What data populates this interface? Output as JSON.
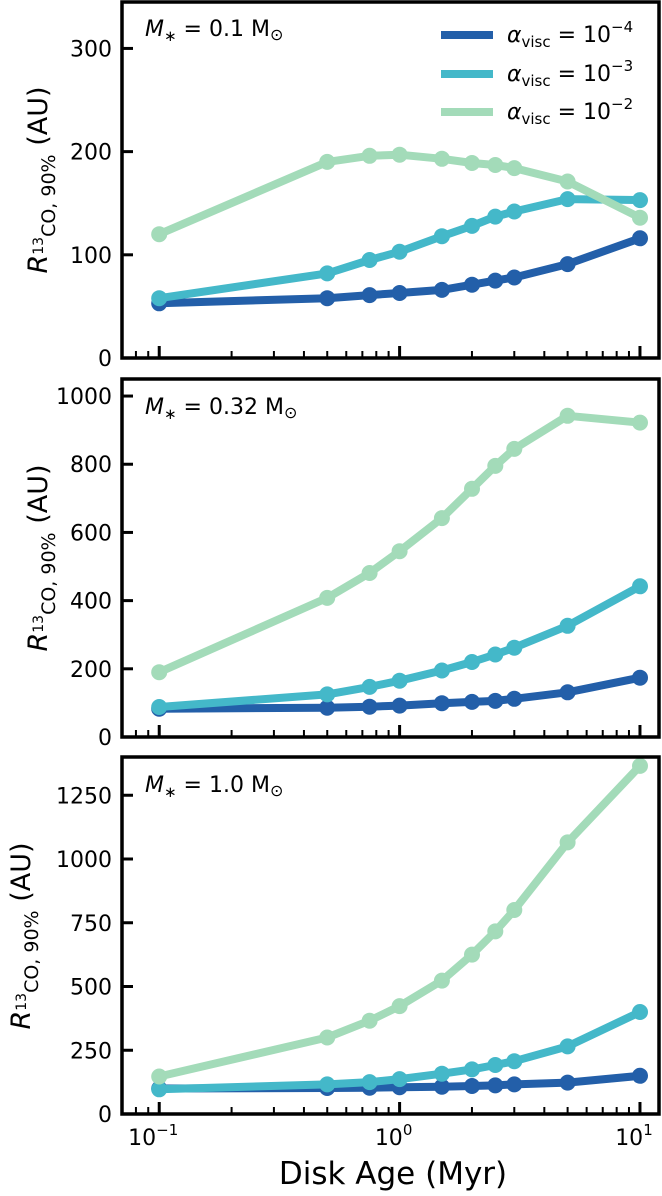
{
  "figure": {
    "xlabel": "Disk Age (Myr)",
    "ylabel_main": "R",
    "ylabel_sub": "13",
    "ylabel_sub2": "CO, 90%",
    "ylabel_unit": "(AU)",
    "x_tick_labels": [
      "10",
      "10",
      "10"
    ],
    "x_tick_exponents": [
      "−1",
      "0",
      "1"
    ]
  },
  "legend": {
    "placement": "top-right",
    "entries": [
      {
        "alpha": "α",
        "sub": "visc",
        "eq": " = 10",
        "exp": "−4",
        "color": "#235fa9"
      },
      {
        "alpha": "α",
        "sub": "visc",
        "eq": " = 10",
        "exp": "−3",
        "color": "#44b8c9"
      },
      {
        "alpha": "α",
        "sub": "visc",
        "eq": " = 10",
        "exp": "−2",
        "color": "#a3dbb9"
      }
    ]
  },
  "panels": [
    {
      "label_main": "M",
      "label_sub": "∗",
      "label_eq": " = 0.1 M",
      "label_sun": "⊙"
    },
    {
      "label_main": "M",
      "label_sub": "∗",
      "label_eq": " = 0.32 M",
      "label_sun": "⊙"
    },
    {
      "label_main": "M",
      "label_sub": "∗",
      "label_eq": " = 1.0 M",
      "label_sun": "⊙"
    }
  ],
  "chart_data": [
    {
      "type": "line",
      "xscale": "log",
      "xlim": [
        0.07,
        12
      ],
      "ylim": [
        0,
        345
      ],
      "yticks": [
        0,
        100,
        200,
        300
      ],
      "ytick_labels": [
        "0",
        "100",
        "200",
        "300"
      ],
      "x": [
        0.1,
        0.5,
        0.75,
        1.0,
        1.5,
        2.0,
        2.5,
        3.0,
        5.0,
        10.0
      ],
      "series": [
        {
          "values": [
            53,
            58,
            61,
            63,
            66,
            71,
            75,
            78,
            91,
            116
          ]
        },
        {
          "values": [
            58,
            82,
            95,
            103,
            118,
            128,
            137,
            142,
            154,
            153
          ]
        },
        {
          "values": [
            120,
            190,
            196,
            197,
            193,
            189,
            187,
            184,
            171,
            136
          ]
        }
      ]
    },
    {
      "type": "line",
      "xscale": "log",
      "xlim": [
        0.07,
        12
      ],
      "ylim": [
        0,
        1050
      ],
      "yticks": [
        0,
        200,
        400,
        600,
        800,
        1000
      ],
      "ytick_labels": [
        "0",
        "200",
        "400",
        "600",
        "800",
        "1000"
      ],
      "x": [
        0.1,
        0.5,
        0.75,
        1.0,
        1.5,
        2.0,
        2.5,
        3.0,
        5.0,
        10.0
      ],
      "series": [
        {
          "values": [
            83,
            86,
            89,
            92,
            99,
            103,
            106,
            112,
            131,
            174
          ]
        },
        {
          "values": [
            88,
            125,
            147,
            165,
            195,
            220,
            242,
            262,
            326,
            442
          ]
        },
        {
          "values": [
            190,
            408,
            481,
            545,
            642,
            728,
            795,
            845,
            942,
            922
          ]
        }
      ]
    },
    {
      "type": "line",
      "xscale": "log",
      "xlim": [
        0.07,
        12
      ],
      "ylim": [
        0,
        1400
      ],
      "yticks": [
        0,
        250,
        500,
        750,
        1000,
        1250
      ],
      "ytick_labels": [
        "0",
        "250",
        "500",
        "750",
        "1000",
        "1250"
      ],
      "x": [
        0.1,
        0.5,
        0.75,
        1.0,
        1.5,
        2.0,
        2.5,
        3.0,
        5.0,
        10.0
      ],
      "series": [
        {
          "values": [
            100,
            102,
            103,
            105,
            107,
            110,
            112,
            116,
            123,
            150
          ]
        },
        {
          "values": [
            97,
            116,
            125,
            137,
            158,
            175,
            192,
            207,
            265,
            400
          ]
        },
        {
          "values": [
            147,
            300,
            366,
            423,
            523,
            625,
            716,
            800,
            1065,
            1365
          ]
        }
      ]
    }
  ]
}
